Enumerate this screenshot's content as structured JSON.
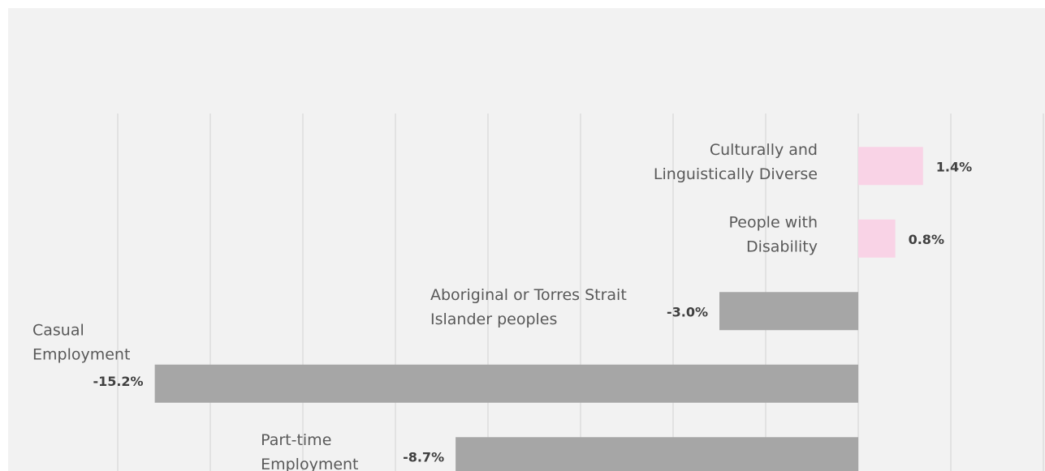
{
  "chart_data": {
    "type": "bar",
    "orientation": "horizontal",
    "categories": [
      "Culturally and Linguistically Diverse",
      "People with Disability",
      "Aboriginal or Torres Strait Islander peoples",
      "Casual Employment",
      "Part-time Employment"
    ],
    "category_label_lines": [
      [
        "Culturally and",
        "Linguistically Diverse"
      ],
      [
        "People with",
        "Disability"
      ],
      [
        "Aboriginal or Torres Strait",
        "Islander peoples"
      ],
      [
        "Casual",
        "Employment"
      ],
      [
        "Part-time",
        "Employment"
      ]
    ],
    "values": [
      1.4,
      0.8,
      -3.0,
      -15.2,
      -8.7
    ],
    "value_labels": [
      "1.4%",
      "0.8%",
      "-3.0%",
      "-15.2%",
      "-8.7%"
    ],
    "xlim": [
      -16,
      4
    ],
    "grid": true,
    "colors": {
      "positive": "#f9d3e6",
      "negative": "#a6a6a6",
      "gridline": "#d9d9d9",
      "background": "#f2f2f2"
    }
  }
}
